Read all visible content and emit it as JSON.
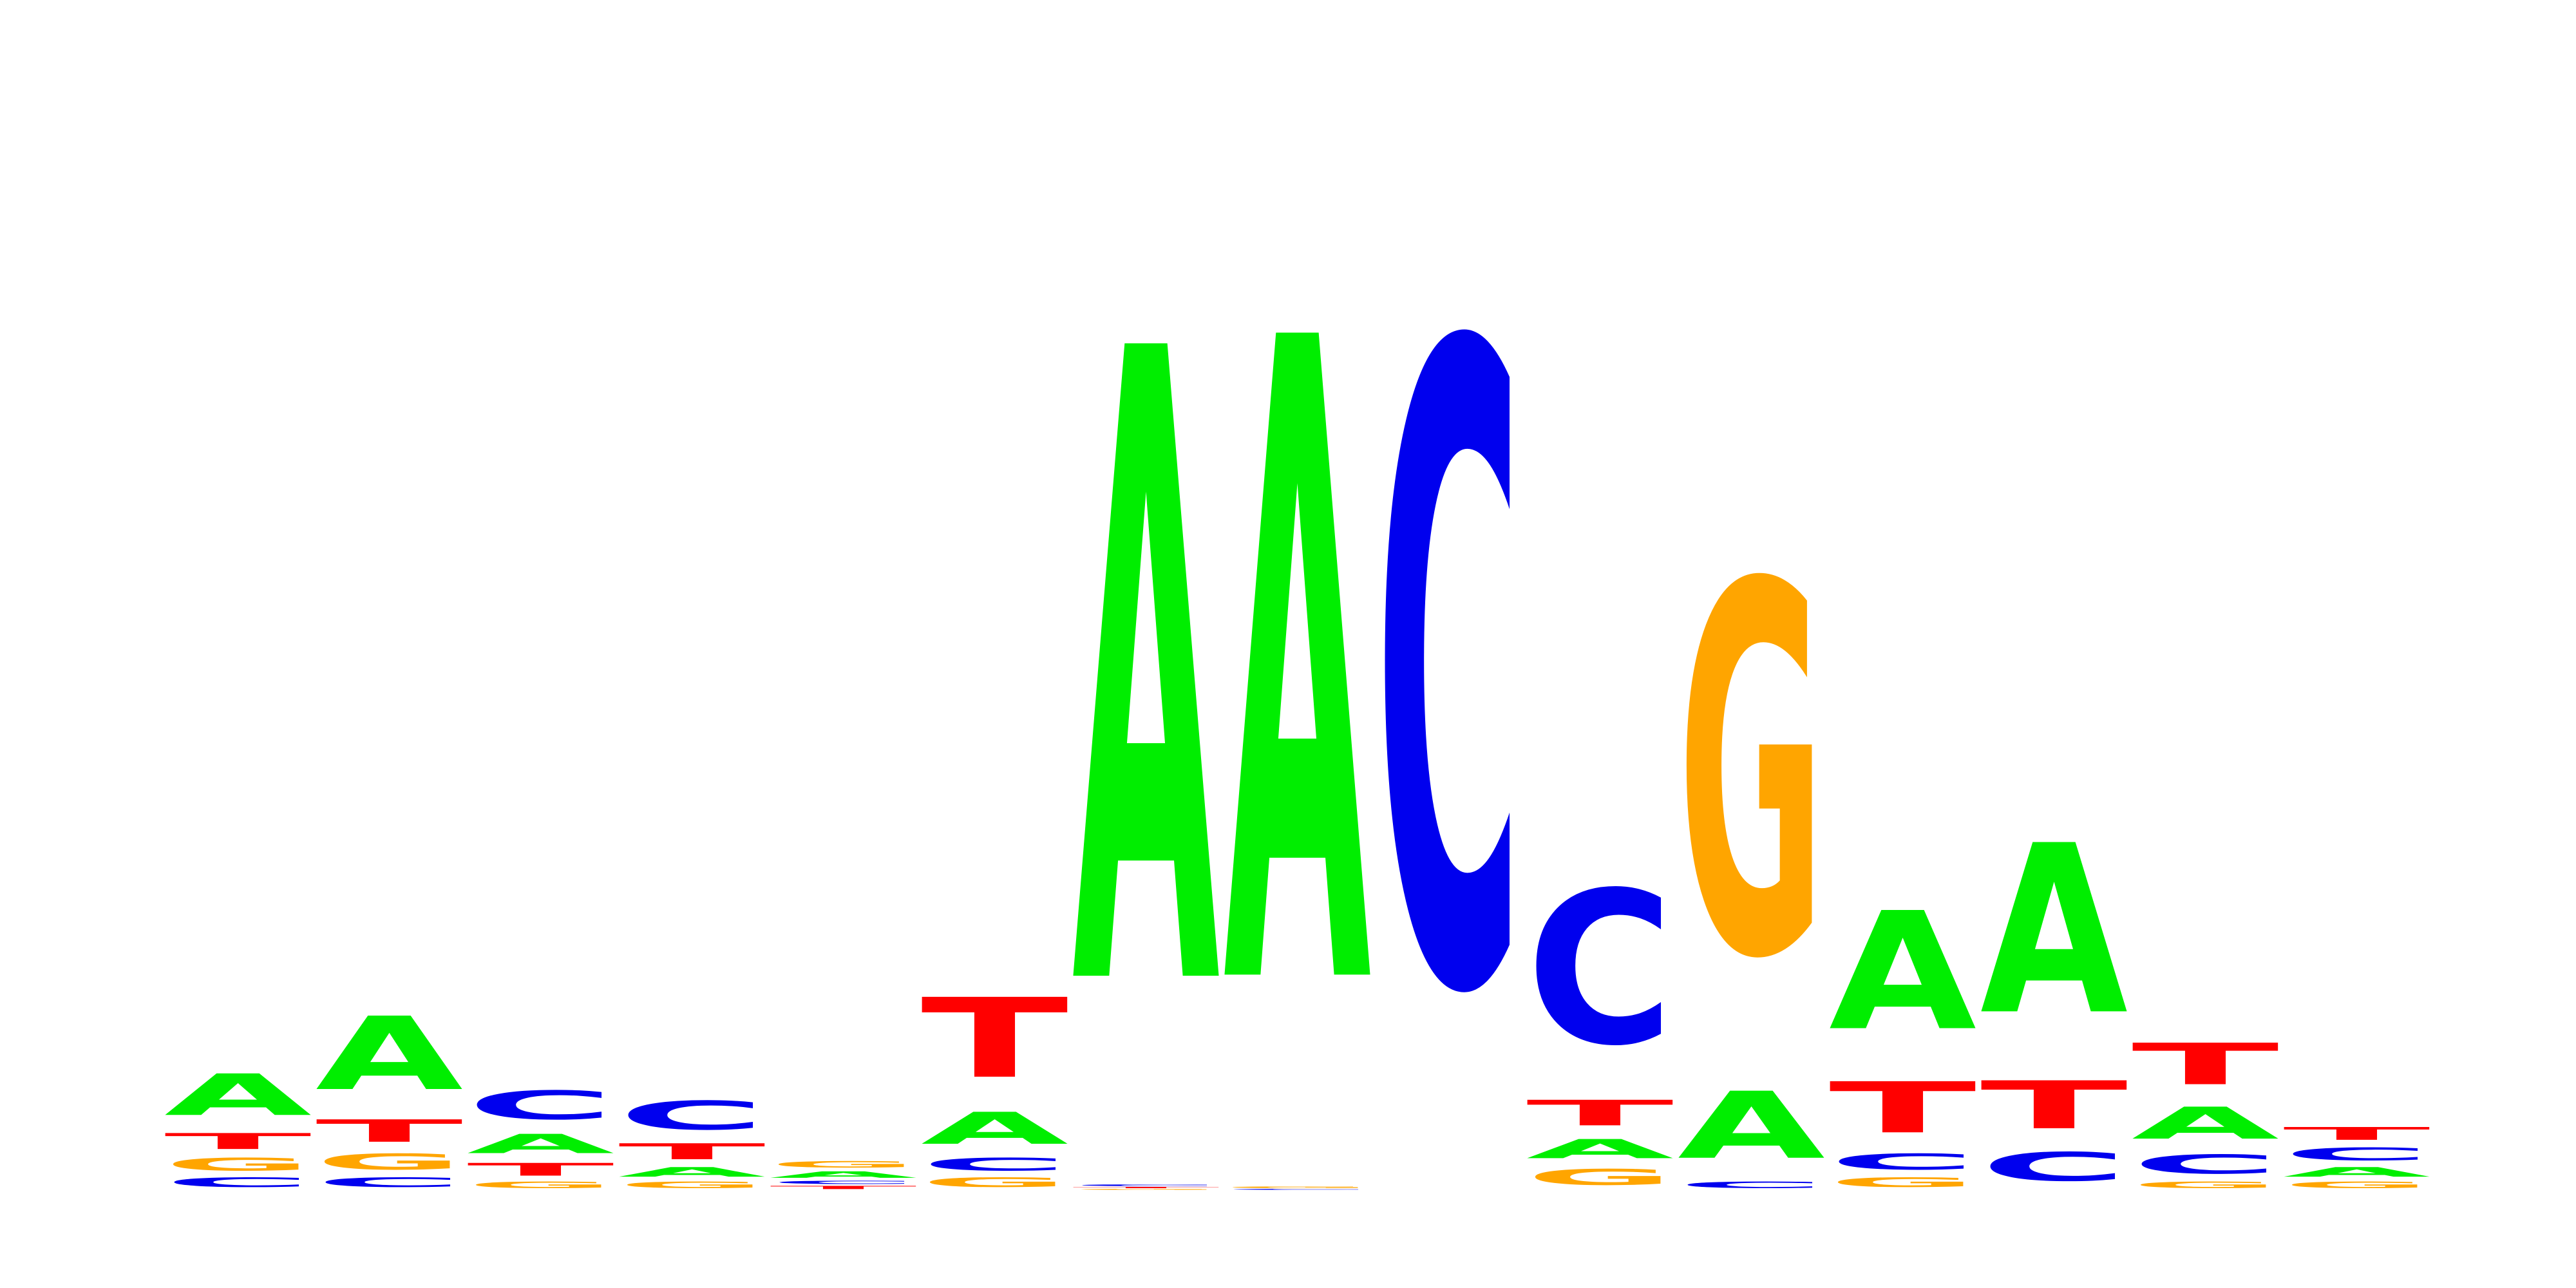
{
  "colors": {
    "A": "#00ee00",
    "C": "#0000ee",
    "G": "#ffa500",
    "T": "#ff0000"
  },
  "chart_data": {
    "type": "sequence-logo",
    "alphabet": [
      "A",
      "C",
      "G",
      "T"
    ],
    "ylim": [
      0,
      2
    ],
    "positions": [
      {
        "stack": [
          [
            "C",
            0.03
          ],
          [
            "G",
            0.04
          ],
          [
            "T",
            0.05
          ],
          [
            "A",
            0.13
          ]
        ]
      },
      {
        "stack": [
          [
            "C",
            0.03
          ],
          [
            "G",
            0.05
          ],
          [
            "T",
            0.07
          ],
          [
            "A",
            0.23
          ]
        ]
      },
      {
        "stack": [
          [
            "G",
            0.02
          ],
          [
            "T",
            0.04
          ],
          [
            "A",
            0.06
          ],
          [
            "C",
            0.09
          ]
        ]
      },
      {
        "stack": [
          [
            "G",
            0.02
          ],
          [
            "A",
            0.03
          ],
          [
            "T",
            0.05
          ],
          [
            "C",
            0.09
          ]
        ]
      },
      {
        "stack": [
          [
            "T",
            0.01
          ],
          [
            "C",
            0.01
          ],
          [
            "A",
            0.02
          ],
          [
            "G",
            0.02
          ]
        ]
      },
      {
        "stack": [
          [
            "G",
            0.03
          ],
          [
            "C",
            0.04
          ],
          [
            "A",
            0.1
          ],
          [
            "T",
            0.25
          ]
        ]
      },
      {
        "stack": [
          [
            "G",
            0.003
          ],
          [
            "T",
            0.004
          ],
          [
            "C",
            0.005
          ],
          [
            "A",
            1.98
          ]
        ]
      },
      {
        "stack": [
          [
            "C",
            0.003
          ],
          [
            "G",
            0.005
          ],
          [
            "A",
            2.01
          ]
        ]
      },
      {
        "stack": [
          [
            "C",
            2.0
          ]
        ]
      },
      {
        "stack": [
          [
            "G",
            0.05
          ],
          [
            "A",
            0.06
          ],
          [
            "T",
            0.08
          ],
          [
            "C",
            0.48
          ]
        ]
      },
      {
        "stack": [
          [
            "C",
            0.02
          ],
          [
            "A",
            0.21
          ],
          [
            "G",
            1.16
          ]
        ]
      },
      {
        "stack": [
          [
            "G",
            0.03
          ],
          [
            "C",
            0.05
          ],
          [
            "T",
            0.16
          ],
          [
            "A",
            0.37
          ]
        ]
      },
      {
        "stack": [
          [
            "C",
            0.09
          ],
          [
            "T",
            0.15
          ],
          [
            "A",
            0.53
          ]
        ]
      },
      {
        "stack": [
          [
            "G",
            0.02
          ],
          [
            "C",
            0.06
          ],
          [
            "A",
            0.1
          ],
          [
            "T",
            0.13
          ]
        ]
      },
      {
        "stack": [
          [
            "G",
            0.02
          ],
          [
            "A",
            0.03
          ],
          [
            "C",
            0.04
          ],
          [
            "T",
            0.04
          ]
        ]
      }
    ]
  }
}
